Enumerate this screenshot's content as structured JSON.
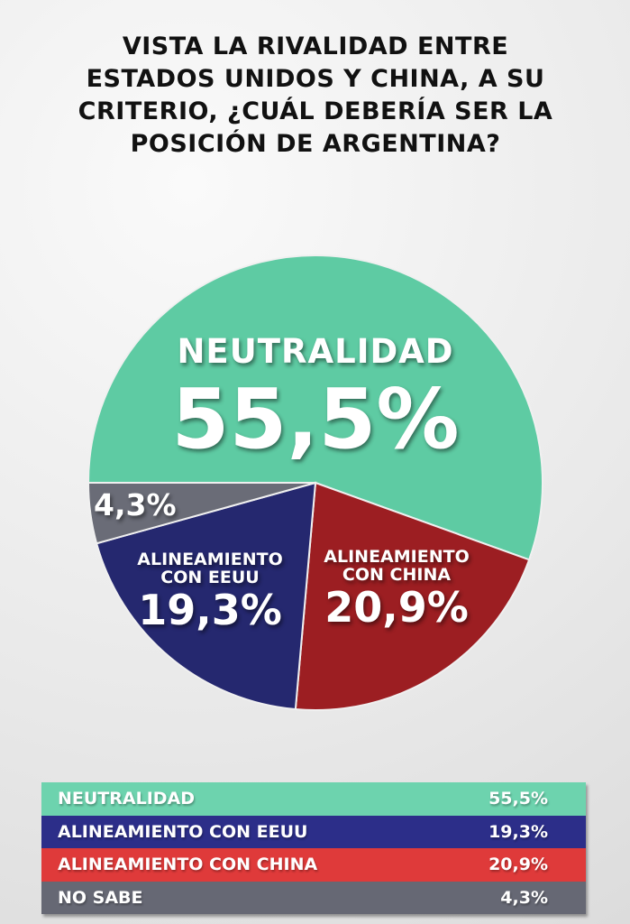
{
  "title": "VISTA LA RIVALIDAD ENTRE ESTADOS UNIDOS Y CHINA, A SU CRITERIO, ¿CUÁL DEBERÍA SER LA POSICIÓN DE ARGENTINA?",
  "chart_data": {
    "type": "pie",
    "title": "VISTA LA RIVALIDAD ENTRE ESTADOS UNIDOS Y CHINA, A SU CRITERIO, ¿CUÁL DEBERÍA SER LA POSICIÓN DE ARGENTINA?",
    "slices": [
      {
        "label": "NEUTRALIDAD",
        "value": 55.5,
        "value_label": "55,5%",
        "color": "#5ecba3",
        "table_color": "#6dd3ae"
      },
      {
        "label": "ALINEAMIENTO CON CHINA",
        "value": 20.9,
        "value_label": "20,9%",
        "color": "#9c1e22",
        "table_color": "#df3a3a"
      },
      {
        "label": "ALINEAMIENTO CON EEUU",
        "value": 19.3,
        "value_label": "19,3%",
        "color": "#25286f",
        "table_color": "#2c2e89"
      },
      {
        "label": "NO SABE",
        "value": 4.3,
        "value_label": "4,3%",
        "color": "#6a6c77",
        "table_color": "#666874"
      }
    ],
    "pie_labels": {
      "neutral_line1": "NEUTRALIDAD",
      "china_line1": "ALINEAMIENTO",
      "china_line2": "CON CHINA",
      "eeuu_line1": "ALINEAMIENTO",
      "eeuu_line2": "CON EEUU"
    },
    "legend_placement": "bottom"
  }
}
